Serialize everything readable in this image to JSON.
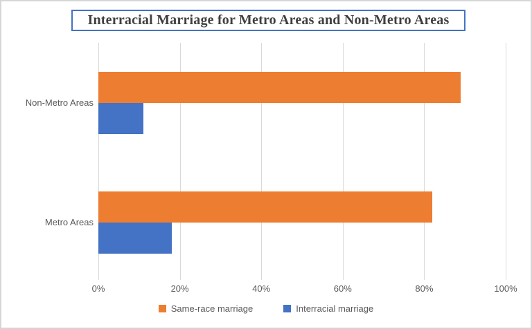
{
  "chart_data": {
    "type": "bar",
    "orientation": "horizontal",
    "title": "Interracial Marriage for Metro Areas and Non-Metro Areas",
    "categories": [
      "Non-Metro Areas",
      "Metro Areas"
    ],
    "series": [
      {
        "name": "Same-race marriage",
        "color": "#ED7D31",
        "values": [
          89,
          82
        ]
      },
      {
        "name": "Interracial marriage",
        "color": "#4472C4",
        "values": [
          11,
          18
        ]
      }
    ],
    "x_axis": {
      "min": 0,
      "max": 100,
      "unit": "%",
      "ticks": [
        "0%",
        "20%",
        "40%",
        "60%",
        "80%",
        "100%"
      ]
    },
    "grid": "vertical-gridlines-every-20-percent",
    "legend_position": "bottom",
    "colors": {
      "title_border": "#4472C4",
      "gridline": "#D9D9D9",
      "label_text": "#595959",
      "title_text": "#3F3F3F",
      "frame_border": "#D6D6D6"
    }
  }
}
